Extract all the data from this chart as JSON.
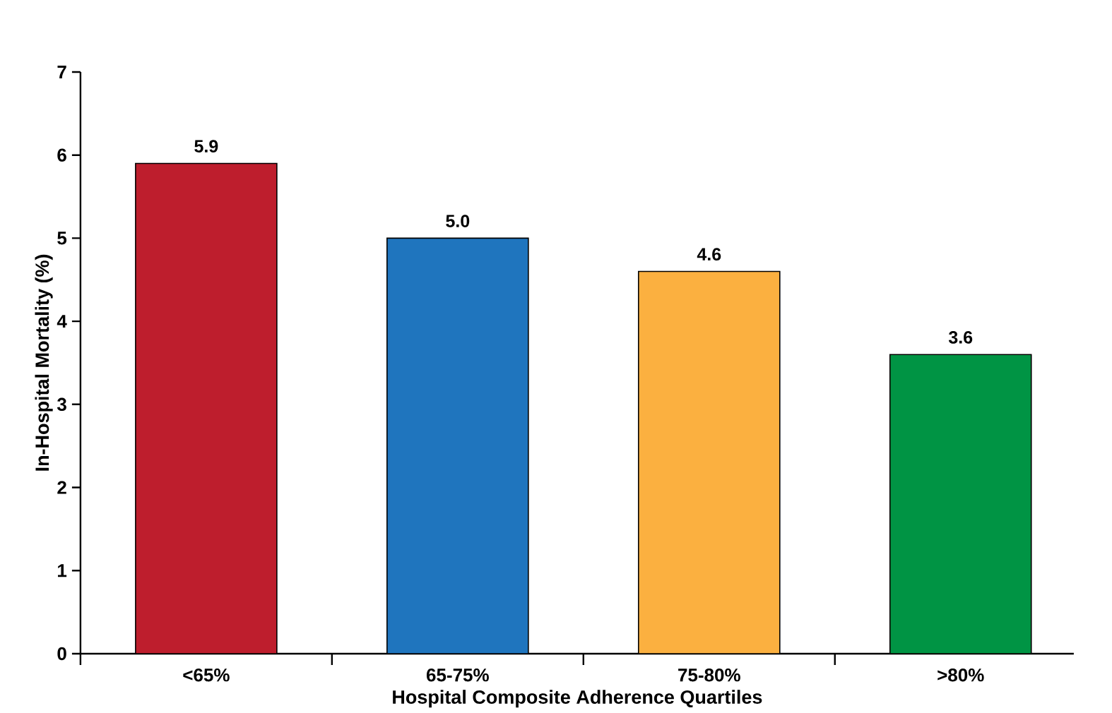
{
  "chart_data": {
    "type": "bar",
    "xlabel": "Hospital Composite Adherence Quartiles",
    "ylabel": "In-Hospital Mortality (%)",
    "categories": [
      "<65%",
      "65-75%",
      "75-80%",
      ">80%"
    ],
    "values": [
      5.9,
      5.0,
      4.6,
      3.6
    ],
    "value_labels": [
      "5.9",
      "5.0",
      "4.6",
      "3.6"
    ],
    "colors": [
      "#be1e2d",
      "#1f75be",
      "#fbb040",
      "#009444"
    ],
    "ylim": [
      0,
      7
    ],
    "yticks": [
      0,
      1,
      2,
      3,
      4,
      5,
      6,
      7
    ],
    "grid": false
  }
}
